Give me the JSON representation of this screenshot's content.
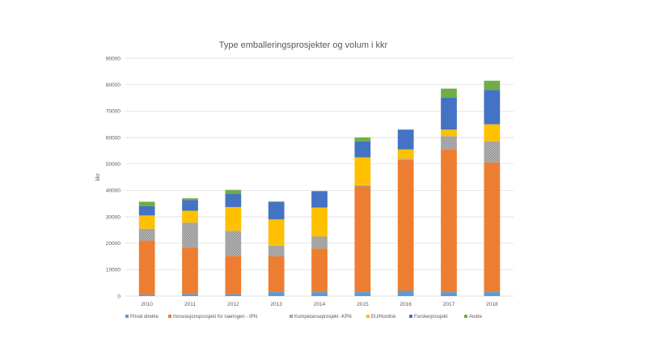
{
  "chart_data": {
    "type": "bar",
    "stacked": true,
    "title": "Type emballeringsprosjekter  og volum i kkr",
    "ylabel": "kkr",
    "xlabel": "",
    "ylim": [
      0,
      90000
    ],
    "yticks": [
      "0",
      "10000",
      "20000",
      "30000",
      "40000",
      "50000",
      "60000",
      "70000",
      "80000",
      "90000"
    ],
    "ytick_values": [
      0,
      10000,
      20000,
      30000,
      40000,
      50000,
      60000,
      70000,
      80000,
      90000
    ],
    "grid": true,
    "legend_position": "bottom",
    "categories": [
      "2010",
      "2011",
      "2012",
      "2013",
      "2014",
      "2015",
      "2016",
      "2017",
      "2018"
    ],
    "series": [
      {
        "name": "Privat direkte",
        "color": "#5B9BD5",
        "pattern": "solid",
        "values": [
          500,
          800,
          700,
          1500,
          1500,
          1500,
          2000,
          1500,
          1500
        ]
      },
      {
        "name": "Innovasjonsprosjekt for næringen - IPN",
        "color": "#ED7D31",
        "pattern": "solid",
        "values": [
          20500,
          17500,
          14500,
          13500,
          16500,
          40000,
          49500,
          54000,
          49000
        ]
      },
      {
        "name": "Kompetanseprosjekt -KPN",
        "color": "#A5A5A5",
        "pattern": "hatch",
        "values": [
          4500,
          9500,
          9500,
          4000,
          4500,
          500,
          500,
          5000,
          8000
        ]
      },
      {
        "name": "EU/Nordisk",
        "color": "#FFC000",
        "pattern": "solid",
        "values": [
          5000,
          4500,
          9000,
          10000,
          11000,
          10500,
          3500,
          2500,
          6500
        ]
      },
      {
        "name": "Forskerprosjekt",
        "color": "#4472C4",
        "pattern": "solid",
        "values": [
          3500,
          4000,
          5000,
          6500,
          6000,
          6000,
          7500,
          12000,
          13000
        ]
      },
      {
        "name": "Andre",
        "color": "#70AD47",
        "pattern": "solid",
        "values": [
          1700,
          700,
          1500,
          300,
          300,
          1500,
          0,
          3500,
          3500
        ]
      }
    ]
  }
}
